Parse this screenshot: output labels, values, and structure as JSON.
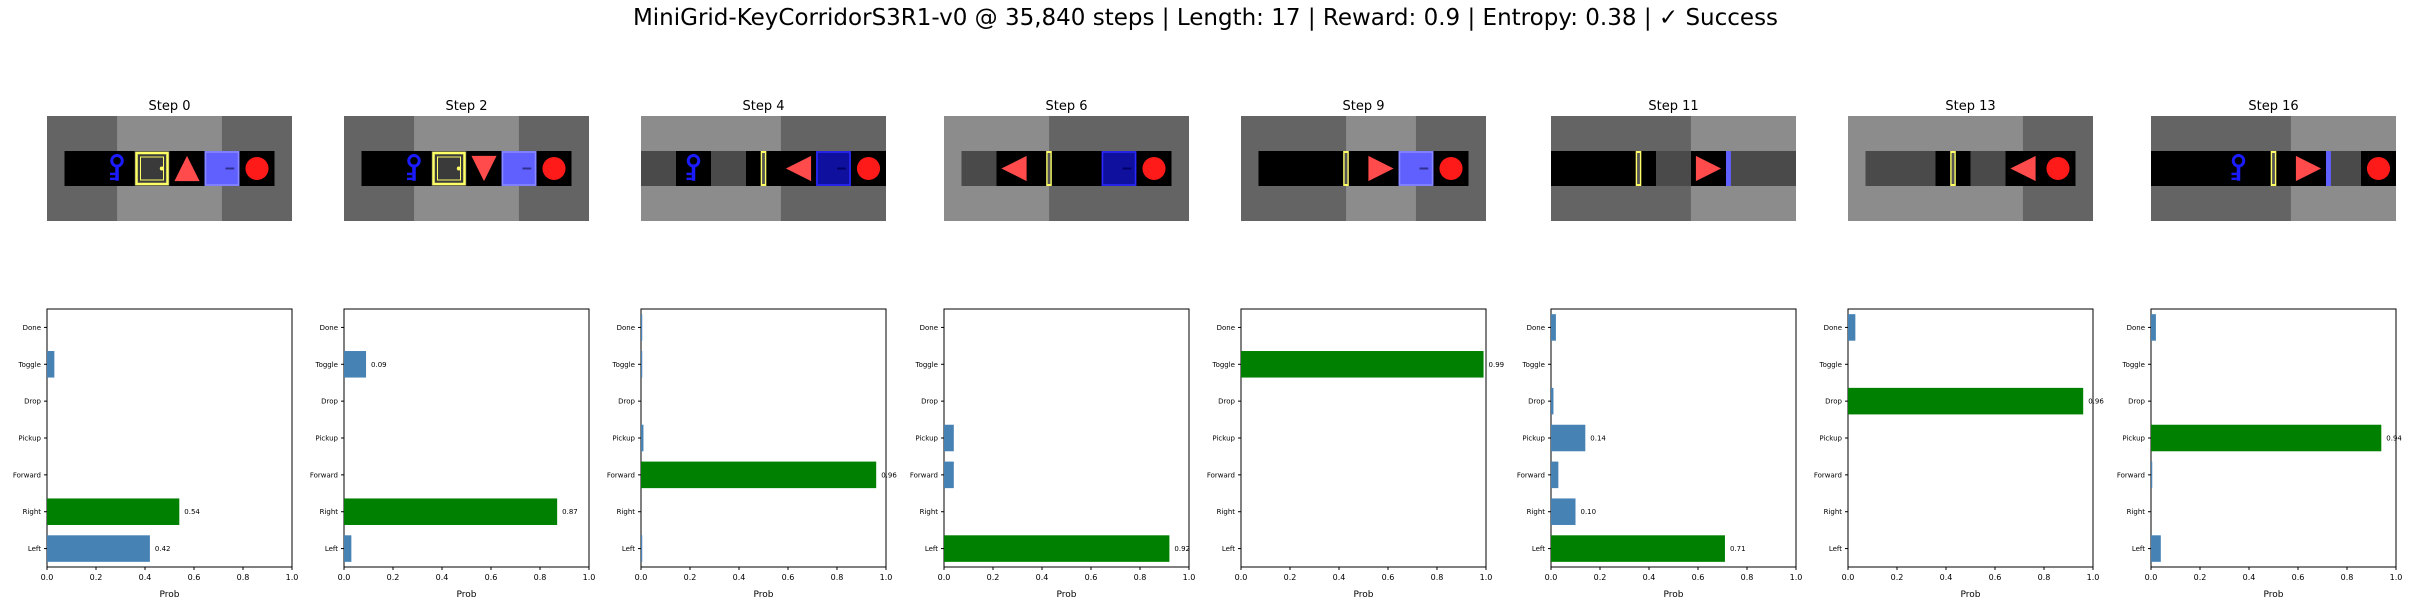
{
  "title": "MiniGrid-KeyCorridorS3R1-v0 @ 35,840 steps | Length: 17 | Reward: 0.9 | Entropy: 0.38 | ✓ Success",
  "colors": {
    "chosen_bar": "#008000",
    "other_bar": "#4682b4",
    "wall": "#646464",
    "visible_floor": "#8c8c8c",
    "cell_black": "#000000",
    "cell_gray": "#4a4a4a",
    "agent": "#ff4b4b",
    "goal_ball": "#ff1a1a",
    "key": "#1b1bff",
    "door_yellow": "#ffff66",
    "door_blue": "#6060ff"
  },
  "chart_data": [
    {
      "type": "bar",
      "orientation": "horizontal",
      "step_title": "Step 0",
      "categories": [
        "Left",
        "Right",
        "Forward",
        "Pickup",
        "Drop",
        "Toggle",
        "Done"
      ],
      "values": [
        0.42,
        0.54,
        0.0,
        0.0,
        0.0,
        0.03,
        0.0
      ],
      "chosen": "Right",
      "value_labels": {
        "Left": "0.42",
        "Right": "0.54"
      },
      "xlabel": "Prob",
      "xlim": [
        0,
        1.0
      ],
      "xticks": [
        "0.0",
        "0.2",
        "0.4",
        "0.6",
        "0.8",
        "1.0"
      ],
      "frame": {
        "floor_band": [
          0.0,
          0.0
        ],
        "lit_band": [
          0.286,
          0.714
        ],
        "cells": [
          "black",
          "key",
          "door_yellow_open",
          "agent_up",
          "door_blue",
          "ball"
        ]
      }
    },
    {
      "type": "bar",
      "orientation": "horizontal",
      "step_title": "Step 2",
      "categories": [
        "Left",
        "Right",
        "Forward",
        "Pickup",
        "Drop",
        "Toggle",
        "Done"
      ],
      "values": [
        0.03,
        0.87,
        0.0,
        0.0,
        0.0,
        0.09,
        0.0
      ],
      "chosen": "Right",
      "value_labels": {
        "Right": "0.87",
        "Toggle": "0.09"
      },
      "xlabel": "Prob",
      "xlim": [
        0,
        1.0
      ],
      "xticks": [
        "0.0",
        "0.2",
        "0.4",
        "0.6",
        "0.8",
        "1.0"
      ],
      "frame": {
        "lit_band": [
          0.286,
          0.714
        ],
        "cells": [
          "black",
          "key",
          "door_yellow_open",
          "agent_down",
          "door_blue",
          "ball"
        ]
      }
    },
    {
      "type": "bar",
      "orientation": "horizontal",
      "step_title": "Step 4",
      "categories": [
        "Left",
        "Right",
        "Forward",
        "Pickup",
        "Drop",
        "Toggle",
        "Done"
      ],
      "values": [
        0.005,
        0.0,
        0.96,
        0.01,
        0.0,
        0.005,
        0.005
      ],
      "chosen": "Forward",
      "value_labels": {
        "Forward": "0.96"
      },
      "xlabel": "Prob",
      "xlim": [
        0,
        1.0
      ],
      "xticks": [
        "0.0",
        "0.2",
        "0.4",
        "0.6",
        "0.8",
        "1.0"
      ],
      "frame": {
        "lit_band": [
          0.0,
          0.571
        ],
        "cells": [
          "gray",
          "key",
          "gray",
          "door_yellow_line",
          "agent_left",
          "door_blue_dark",
          "ball"
        ]
      }
    },
    {
      "type": "bar",
      "orientation": "horizontal",
      "step_title": "Step 6",
      "categories": [
        "Left",
        "Right",
        "Forward",
        "Pickup",
        "Drop",
        "Toggle",
        "Done"
      ],
      "values": [
        0.92,
        0.0,
        0.04,
        0.04,
        0.0,
        0.0,
        0.0
      ],
      "chosen": "Left",
      "value_labels": {
        "Left": "0.92"
      },
      "xlabel": "Prob",
      "xlim": [
        0,
        1.0
      ],
      "xticks": [
        "0.0",
        "0.2",
        "0.4",
        "0.6",
        "0.8",
        "1.0"
      ],
      "frame": {
        "lit_band": [
          0.0,
          0.429
        ],
        "cells": [
          "gray",
          "agent_left",
          "door_yellow_line",
          "black",
          "door_blue_dark",
          "ball"
        ]
      }
    },
    {
      "type": "bar",
      "orientation": "horizontal",
      "step_title": "Step 9",
      "categories": [
        "Left",
        "Right",
        "Forward",
        "Pickup",
        "Drop",
        "Toggle",
        "Done"
      ],
      "values": [
        0.0,
        0.0,
        0.0,
        0.0,
        0.0,
        0.99,
        0.0
      ],
      "chosen": "Toggle",
      "value_labels": {
        "Toggle": "0.99"
      },
      "xlabel": "Prob",
      "xlim": [
        0,
        1.0
      ],
      "xticks": [
        "0.0",
        "0.2",
        "0.4",
        "0.6",
        "0.8",
        "1.0"
      ],
      "frame": {
        "lit_band": [
          0.429,
          0.714
        ],
        "cells": [
          "black",
          "black",
          "door_yellow_line",
          "agent_right",
          "door_blue",
          "ball"
        ]
      }
    },
    {
      "type": "bar",
      "orientation": "horizontal",
      "step_title": "Step 11",
      "categories": [
        "Left",
        "Right",
        "Forward",
        "Pickup",
        "Drop",
        "Toggle",
        "Done"
      ],
      "values": [
        0.71,
        0.1,
        0.03,
        0.14,
        0.01,
        0.0,
        0.02
      ],
      "chosen": "Left",
      "value_labels": {
        "Left": "0.71",
        "Right": "0.10",
        "Pickup": "0.14"
      },
      "xlabel": "Prob",
      "xlim": [
        0,
        1.0
      ],
      "xticks": [
        "0.0",
        "0.2",
        "0.4",
        "0.6",
        "0.8",
        "1.0"
      ],
      "frame": {
        "lit_band": [
          0.571,
          1.0
        ],
        "cells": [
          "black",
          "black",
          "door_yellow_line",
          "gray",
          "agent_right",
          "door_blue_line",
          "gray"
        ]
      }
    },
    {
      "type": "bar",
      "orientation": "horizontal",
      "step_title": "Step 13",
      "categories": [
        "Left",
        "Right",
        "Forward",
        "Pickup",
        "Drop",
        "Toggle",
        "Done"
      ],
      "values": [
        0.0,
        0.0,
        0.0,
        0.0,
        0.96,
        0.0,
        0.03
      ],
      "chosen": "Drop",
      "value_labels": {
        "Drop": "0.96"
      },
      "xlabel": "Prob",
      "xlim": [
        0,
        1.0
      ],
      "xticks": [
        "0.0",
        "0.2",
        "0.4",
        "0.6",
        "0.8",
        "1.0"
      ],
      "frame": {
        "lit_band": [
          0.0,
          0.714
        ],
        "cells": [
          "gray",
          "gray",
          "door_yellow_line",
          "gray",
          "agent_left",
          "ball"
        ]
      }
    },
    {
      "type": "bar",
      "orientation": "horizontal",
      "step_title": "Step 16",
      "categories": [
        "Left",
        "Right",
        "Forward",
        "Pickup",
        "Drop",
        "Toggle",
        "Done"
      ],
      "values": [
        0.04,
        0.0,
        0.005,
        0.94,
        0.0,
        0.0,
        0.02
      ],
      "chosen": "Pickup",
      "value_labels": {
        "Pickup": "0.94"
      },
      "xlabel": "Prob",
      "xlim": [
        0,
        1.0
      ],
      "xticks": [
        "0.0",
        "0.2",
        "0.4",
        "0.6",
        "0.8",
        "1.0"
      ],
      "frame": {
        "lit_band": [
          0.571,
          1.0
        ],
        "cells": [
          "black",
          "black",
          "key",
          "door_yellow_line",
          "agent_right",
          "door_blue_line",
          "ball"
        ]
      }
    }
  ]
}
